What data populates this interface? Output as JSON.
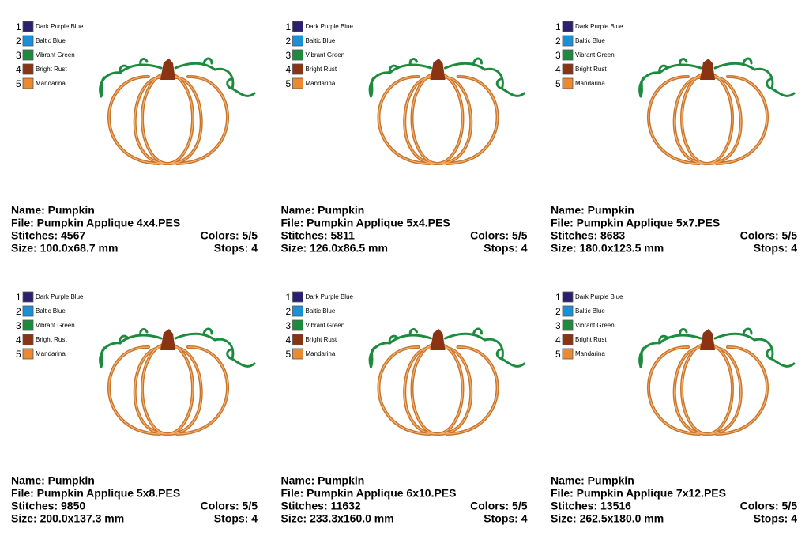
{
  "palette": [
    {
      "number": "1",
      "name": "Dark Purple Blue",
      "color": "#2b2070"
    },
    {
      "number": "2",
      "name": "Baltic Blue",
      "color": "#1a90d8"
    },
    {
      "number": "3",
      "name": "Vibrant Green",
      "color": "#1d8b3e"
    },
    {
      "number": "4",
      "name": "Bright Rust",
      "color": "#8a3414"
    },
    {
      "number": "5",
      "name": "Mandarina",
      "color": "#ec8a32"
    }
  ],
  "cards": [
    {
      "name": "Name: Pumpkin",
      "file": "File: Pumpkin Applique 4x4.PES",
      "stitches": "Stitches: 4567",
      "colors": "Colors: 5/5",
      "size": "Size: 100.0x68.7 mm",
      "stops": "Stops: 4"
    },
    {
      "name": "Name: Pumpkin",
      "file": "File: Pumpkin Applique 5x4.PES",
      "stitches": "Stitches: 5811",
      "colors": "Colors: 5/5",
      "size": "Size: 126.0x86.5 mm",
      "stops": "Stops: 4"
    },
    {
      "name": "Name: Pumpkin",
      "file": "File: Pumpkin Applique 5x7.PES",
      "stitches": "Stitches: 8683",
      "colors": "Colors: 5/5",
      "size": "Size: 180.0x123.5 mm",
      "stops": "Stops: 4"
    },
    {
      "name": "Name: Pumpkin",
      "file": "File: Pumpkin Applique 5x8.PES",
      "stitches": "Stitches: 9850",
      "colors": "Colors: 5/5",
      "size": "Size: 200.0x137.3 mm",
      "stops": "Stops: 4"
    },
    {
      "name": "Name: Pumpkin",
      "file": "File: Pumpkin Applique 6x10.PES",
      "stitches": "Stitches: 11632",
      "colors": "Colors: 5/5",
      "size": "Size: 233.3x160.0 mm",
      "stops": "Stops: 4"
    },
    {
      "name": "Name: Pumpkin",
      "file": "File: Pumpkin Applique 7x12.PES",
      "stitches": "Stitches: 13516",
      "colors": "Colors: 5/5",
      "size": "Size: 262.5x180.0 mm",
      "stops": "Stops: 4"
    }
  ]
}
